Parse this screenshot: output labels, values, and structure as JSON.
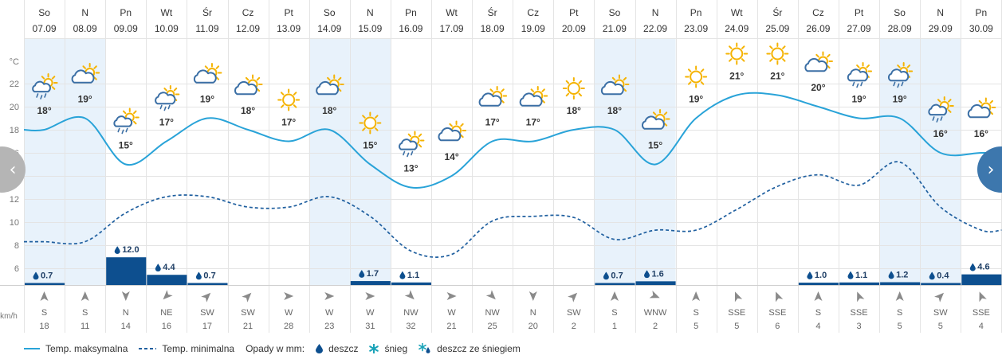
{
  "chart_data": {
    "type": "line",
    "days": [
      {
        "dow": "So",
        "date": "07.09",
        "max": 18,
        "min": 8.3,
        "icon": "sun-cloud-rain-icon",
        "precip": 0.7,
        "wind_dir": "S",
        "wind_speed": 18,
        "deg": 0,
        "highlight": true
      },
      {
        "dow": "N",
        "date": "08.09",
        "max": 19,
        "min": 8.3,
        "icon": "sun-cloud-icon",
        "precip": null,
        "wind_dir": "S",
        "wind_speed": 11,
        "deg": 0,
        "highlight": true
      },
      {
        "dow": "Pn",
        "date": "09.09",
        "max": 15,
        "min": 10.8,
        "icon": "sun-cloud-rain-icon",
        "precip": 12.0,
        "wind_dir": "N",
        "wind_speed": 14,
        "deg": 180,
        "highlight": false
      },
      {
        "dow": "Wt",
        "date": "10.09",
        "max": 17,
        "min": 12.2,
        "icon": "cloud-rain-icon",
        "precip": 4.4,
        "wind_dir": "NE",
        "wind_speed": 16,
        "deg": 225,
        "highlight": false
      },
      {
        "dow": "Śr",
        "date": "11.09",
        "max": 19,
        "min": 12.2,
        "icon": "sun-cloud-icon",
        "precip": 0.7,
        "wind_dir": "SW",
        "wind_speed": 17,
        "deg": 45,
        "highlight": false
      },
      {
        "dow": "Cz",
        "date": "12.09",
        "max": 18,
        "min": 11.3,
        "icon": "sun-cloud-icon",
        "precip": null,
        "wind_dir": "SW",
        "wind_speed": 21,
        "deg": 45,
        "highlight": false
      },
      {
        "dow": "Pt",
        "date": "13.09",
        "max": 17,
        "min": 11.3,
        "icon": "sun-icon",
        "precip": null,
        "wind_dir": "W",
        "wind_speed": 28,
        "deg": 90,
        "highlight": false
      },
      {
        "dow": "So",
        "date": "14.09",
        "max": 18,
        "min": 12.2,
        "icon": "sun-cloud-icon",
        "precip": null,
        "wind_dir": "W",
        "wind_speed": 23,
        "deg": 90,
        "highlight": true
      },
      {
        "dow": "N",
        "date": "15.09",
        "max": 15,
        "min": 10.5,
        "icon": "sun-icon",
        "precip": 1.7,
        "wind_dir": "W",
        "wind_speed": 31,
        "deg": 90,
        "highlight": true
      },
      {
        "dow": "Pn",
        "date": "16.09",
        "max": 13,
        "min": 7.5,
        "icon": "sun-cloud-rain-icon",
        "precip": 1.1,
        "wind_dir": "NW",
        "wind_speed": 32,
        "deg": 135,
        "highlight": false
      },
      {
        "dow": "Wt",
        "date": "17.09",
        "max": 14,
        "min": 7.2,
        "icon": "sun-cloud-icon",
        "precip": null,
        "wind_dir": "W",
        "wind_speed": 21,
        "deg": 90,
        "highlight": false
      },
      {
        "dow": "Śr",
        "date": "18.09",
        "max": 17,
        "min": 10.1,
        "icon": "sun-cloud-icon",
        "precip": null,
        "wind_dir": "NW",
        "wind_speed": 25,
        "deg": 135,
        "highlight": false
      },
      {
        "dow": "Cz",
        "date": "19.09",
        "max": 17,
        "min": 10.5,
        "icon": "sun-cloud-icon",
        "precip": null,
        "wind_dir": "N",
        "wind_speed": 20,
        "deg": 180,
        "highlight": false
      },
      {
        "dow": "Pt",
        "date": "20.09",
        "max": 18,
        "min": 10.4,
        "icon": "sun-icon",
        "precip": null,
        "wind_dir": "SW",
        "wind_speed": 2,
        "deg": 45,
        "highlight": false
      },
      {
        "dow": "So",
        "date": "21.09",
        "max": 18,
        "min": 8.5,
        "icon": "sun-cloud-icon",
        "precip": 0.7,
        "wind_dir": "S",
        "wind_speed": 1,
        "deg": 0,
        "highlight": true
      },
      {
        "dow": "N",
        "date": "22.09",
        "max": 15,
        "min": 9.3,
        "icon": "sun-cloud-icon",
        "precip": 1.6,
        "wind_dir": "WNW",
        "wind_speed": 2,
        "deg": 112,
        "highlight": true
      },
      {
        "dow": "Pn",
        "date": "23.09",
        "max": 19,
        "min": 9.3,
        "icon": "sun-icon",
        "precip": null,
        "wind_dir": "S",
        "wind_speed": 5,
        "deg": 0,
        "highlight": false
      },
      {
        "dow": "Wt",
        "date": "24.09",
        "max": 21,
        "min": 11.1,
        "icon": "sun-icon",
        "precip": null,
        "wind_dir": "SSE",
        "wind_speed": 5,
        "deg": -22,
        "highlight": false
      },
      {
        "dow": "Śr",
        "date": "25.09",
        "max": 21,
        "min": 13.1,
        "icon": "sun-icon",
        "precip": null,
        "wind_dir": "SSE",
        "wind_speed": 6,
        "deg": -22,
        "highlight": false
      },
      {
        "dow": "Cz",
        "date": "26.09",
        "max": 20,
        "min": 14.1,
        "icon": "sun-cloud-icon",
        "precip": 1.0,
        "wind_dir": "S",
        "wind_speed": 4,
        "deg": 0,
        "highlight": false
      },
      {
        "dow": "Pt",
        "date": "27.09",
        "max": 19,
        "min": 13.2,
        "icon": "cloud-rain-icon",
        "precip": 1.1,
        "wind_dir": "SSE",
        "wind_speed": 3,
        "deg": -22,
        "highlight": false
      },
      {
        "dow": "So",
        "date": "28.09",
        "max": 19,
        "min": 15.2,
        "icon": "cloud-rain-icon",
        "precip": 1.2,
        "wind_dir": "S",
        "wind_speed": 5,
        "deg": 0,
        "highlight": true
      },
      {
        "dow": "N",
        "date": "29.09",
        "max": 16,
        "min": 11.3,
        "icon": "sun-cloud-rain-icon",
        "precip": 0.4,
        "wind_dir": "SW",
        "wind_speed": 5,
        "deg": 45,
        "highlight": true
      },
      {
        "dow": "Pn",
        "date": "30.09",
        "max": 16,
        "min": 9.3,
        "icon": "sun-cloud-icon",
        "precip": 4.6,
        "wind_dir": "SSE",
        "wind_speed": 4,
        "deg": -22,
        "highlight": false
      }
    ],
    "y_axis": {
      "unit": "°C",
      "ticks": [
        22,
        20,
        18,
        16,
        14,
        12,
        10,
        8,
        6
      ],
      "min": 6,
      "max": 22
    },
    "wind_unit": "km/h",
    "colors": {
      "max_line": "#29a3d8",
      "min_line": "#1f5f9f",
      "precip_bar": "#0d4f8f",
      "highlight": "#e8f2fb",
      "grid": "#e4e4e4",
      "sun": "#f5b301",
      "cloud": "#3b6fa5"
    }
  },
  "legend": {
    "max_label": "Temp. maksymalna",
    "min_label": "Temp. minimalna",
    "precip_label": "Opady w mm:",
    "rain_label": "deszcz",
    "snow_label": "śnieg",
    "mixed_label": "deszcz ze śniegiem"
  },
  "nav": {
    "prev_label": "‹",
    "next_label": "›"
  }
}
